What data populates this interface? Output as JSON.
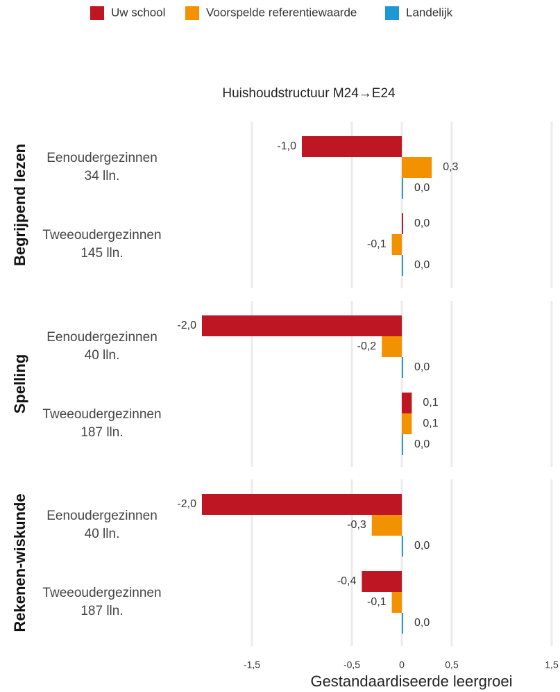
{
  "chart_data": {
    "type": "bar",
    "orientation": "horizontal",
    "title": "Huishoudstructuur M24→E24",
    "x_label": "Gestandaardiseerde leergroei",
    "xlim": [
      -2,
      1.5
    ],
    "xticks": [
      {
        "value": -1.5,
        "label": "-1,5"
      },
      {
        "value": -0.5,
        "label": "-0,5"
      },
      0,
      {
        "value": 0.5,
        "label": "0,5"
      },
      {
        "value": 1.5,
        "label": "1,5"
      }
    ],
    "grid": true,
    "legend": "top",
    "series": [
      {
        "name": "Uw school",
        "color": "#be1622"
      },
      {
        "name": "Voorspelde referentiewaarde",
        "color": "#f39200"
      },
      {
        "name": "Landelijk",
        "color": "#1d9ad6"
      }
    ],
    "facets": [
      {
        "name": "Begrijpend lezen",
        "categories": [
          "Eenoudergezinnen",
          "Tweeoudergezinnen"
        ],
        "counts": [
          "34 lln.",
          "145 lln."
        ],
        "series": [
          {
            "values": [
              -1.0,
              0.0
            ],
            "value_labels": [
              "-1,0",
              "0,0"
            ]
          },
          {
            "values": [
              0.3,
              -0.1
            ],
            "value_labels": [
              "0,3",
              "-0,1"
            ]
          },
          {
            "values": [
              0.0,
              0.0
            ],
            "value_labels": [
              "0,0",
              "0,0"
            ]
          }
        ]
      },
      {
        "name": "Spelling",
        "categories": [
          "Eenoudergezinnen",
          "Tweeoudergezinnen"
        ],
        "counts": [
          "40 lln.",
          "187 lln."
        ],
        "series": [
          {
            "values": [
              -2.0,
              0.1
            ],
            "value_labels": [
              "-2,0",
              "0,1"
            ]
          },
          {
            "values": [
              -0.2,
              0.1
            ],
            "value_labels": [
              "-0,2",
              "0,1"
            ]
          },
          {
            "values": [
              0.0,
              0.0
            ],
            "value_labels": [
              "0,0",
              "0,0"
            ]
          }
        ]
      },
      {
        "name": "Rekenen-wiskunde",
        "categories": [
          "Eenoudergezinnen",
          "Tweeoudergezinnen"
        ],
        "counts": [
          "40 lln.",
          "187 lln."
        ],
        "series": [
          {
            "values": [
              -2.0,
              -0.4
            ],
            "value_labels": [
              "-2,0",
              "-0,4"
            ]
          },
          {
            "values": [
              -0.3,
              -0.1
            ],
            "value_labels": [
              "-0,3",
              "-0,1"
            ]
          },
          {
            "values": [
              0.0,
              0.0
            ],
            "value_labels": [
              "0,0",
              "0,0"
            ]
          }
        ]
      }
    ]
  }
}
